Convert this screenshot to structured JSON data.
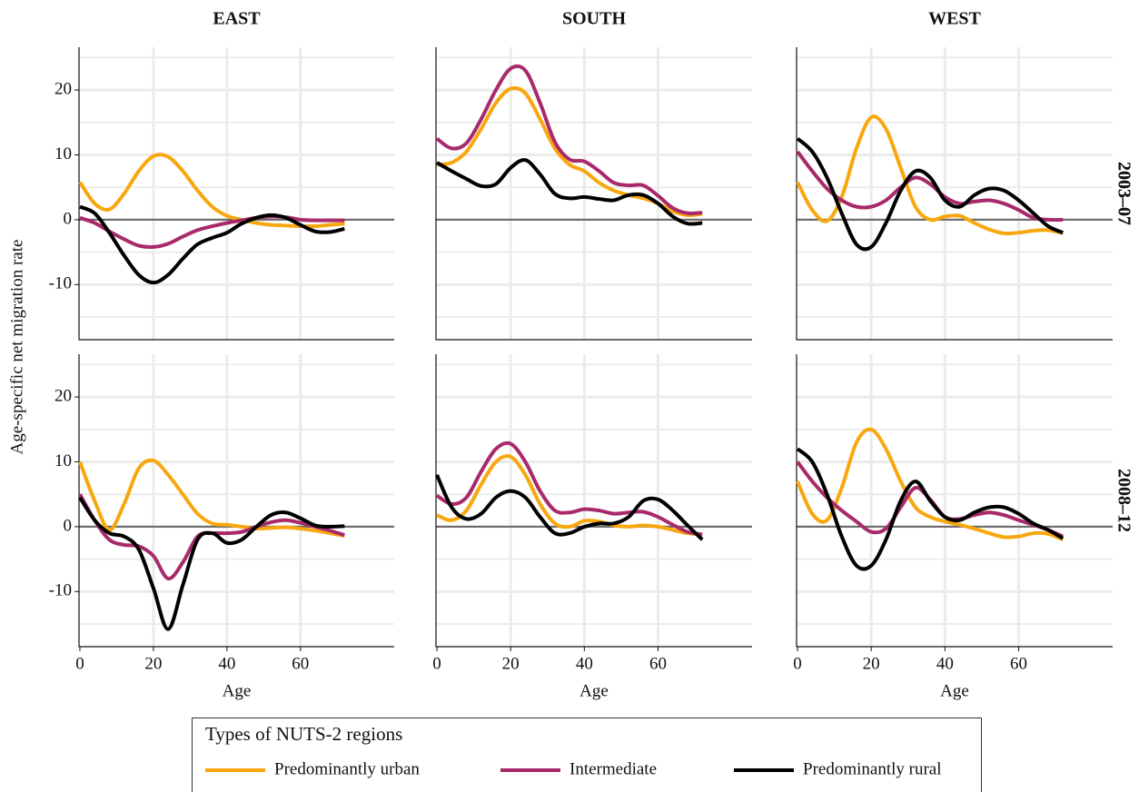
{
  "figure": {
    "y_label": "Age-specific net migration rate",
    "legend_title": "Types of NUTS-2 regions"
  },
  "chart_data": [
    {
      "type": "line",
      "title": "EAST",
      "row_label": "2003–07",
      "x": [
        0,
        4,
        8,
        12,
        16,
        20,
        24,
        28,
        32,
        36,
        40,
        44,
        48,
        52,
        56,
        60,
        64,
        68,
        72
      ],
      "xlim": [
        0,
        85.5
      ],
      "ylim": [
        -18.5,
        26.6
      ],
      "xticks": [
        0,
        20,
        40,
        60
      ],
      "yticks": [
        -10,
        0,
        10,
        20
      ],
      "minor_yticks": [
        -15,
        -5,
        5,
        15,
        25
      ],
      "reference_line": 0,
      "grid": true,
      "series": [
        {
          "name": "Predominantly urban",
          "color": "#f8a70e",
          "values": [
            5.8,
            2.5,
            1.6,
            4,
            7.5,
            9.8,
            9.7,
            7.5,
            4.5,
            2,
            0.6,
            0,
            -0.5,
            -0.8,
            -0.9,
            -1,
            -1,
            -0.8,
            -0.6
          ]
        },
        {
          "name": "Intermediate",
          "color": "#a82a6a",
          "values": [
            0.3,
            -0.5,
            -1.8,
            -3,
            -4,
            -4.2,
            -3.7,
            -2.6,
            -1.6,
            -1,
            -0.5,
            -0.1,
            0.3,
            0.5,
            0.4,
            0,
            -0.1,
            -0.1,
            -0.1
          ]
        },
        {
          "name": "Predominantly rural",
          "color": "#000000",
          "values": [
            2,
            1,
            -2,
            -5.5,
            -8.5,
            -9.7,
            -8.5,
            -6,
            -3.8,
            -2.8,
            -2,
            -0.6,
            0.3,
            0.7,
            0.3,
            -0.8,
            -1.8,
            -1.9,
            -1.4
          ]
        }
      ]
    },
    {
      "type": "line",
      "title": "SOUTH",
      "x": [
        0,
        4,
        8,
        12,
        16,
        20,
        24,
        28,
        32,
        36,
        40,
        44,
        48,
        52,
        56,
        60,
        64,
        68,
        72
      ],
      "xlim": [
        0,
        85.5
      ],
      "ylim": [
        -18.5,
        26.6
      ],
      "xticks": [
        0,
        20,
        40,
        60
      ],
      "yticks": [
        -10,
        0,
        10,
        20
      ],
      "minor_yticks": [
        -15,
        -5,
        5,
        15,
        25
      ],
      "reference_line": 0,
      "grid": true,
      "series": [
        {
          "name": "Predominantly urban",
          "color": "#f8a70e",
          "values": [
            8.5,
            8.8,
            10.5,
            14,
            18,
            20.2,
            19.5,
            15.5,
            11,
            8.5,
            7.5,
            5.7,
            4.5,
            3.8,
            3.3,
            2.5,
            1.3,
            0.7,
            0.9
          ]
        },
        {
          "name": "Intermediate",
          "color": "#a82a6a",
          "values": [
            12.5,
            11,
            11.8,
            15.5,
            20,
            23.3,
            23,
            18,
            12,
            9.3,
            9,
            7.5,
            5.7,
            5.3,
            5.3,
            3.7,
            1.8,
            1,
            1.1
          ]
        },
        {
          "name": "Predominantly rural",
          "color": "#000000",
          "values": [
            8.8,
            7.5,
            6.3,
            5.2,
            5.5,
            8,
            9.2,
            7,
            4,
            3.3,
            3.5,
            3.2,
            3,
            3.8,
            3.8,
            2.5,
            0.5,
            -0.6,
            -0.5
          ]
        }
      ]
    },
    {
      "type": "line",
      "title": "WEST",
      "row_label": "2003–07",
      "x": [
        0,
        4,
        8,
        12,
        16,
        20,
        24,
        28,
        32,
        36,
        40,
        44,
        48,
        52,
        56,
        60,
        64,
        68,
        72
      ],
      "xlim": [
        0,
        85.5
      ],
      "ylim": [
        -18.5,
        26.6
      ],
      "xticks": [
        0,
        20,
        40,
        60
      ],
      "yticks": [
        -10,
        0,
        10,
        20
      ],
      "minor_yticks": [
        -15,
        -5,
        5,
        15,
        25
      ],
      "reference_line": 0,
      "grid": true,
      "series": [
        {
          "name": "Predominantly urban",
          "color": "#f8a70e",
          "values": [
            5.8,
            1.5,
            -0.2,
            3.5,
            11,
            15.8,
            14,
            8,
            2,
            0,
            0.5,
            0.6,
            -0.5,
            -1.5,
            -2.1,
            -2,
            -1.7,
            -1.6,
            -2.1
          ]
        },
        {
          "name": "Intermediate",
          "color": "#a82a6a",
          "values": [
            10.5,
            7.5,
            4.8,
            3,
            2,
            2,
            3,
            5,
            6.5,
            5.5,
            3.5,
            2.5,
            2.8,
            3,
            2.5,
            1.5,
            0.3,
            0,
            0
          ]
        },
        {
          "name": "Predominantly rural",
          "color": "#000000",
          "values": [
            12.5,
            10.5,
            6.5,
            1,
            -3.8,
            -4.2,
            -0.5,
            4.5,
            7.5,
            6.5,
            3,
            2,
            3.8,
            4.8,
            4.5,
            3,
            1,
            -1,
            -2
          ]
        }
      ]
    },
    {
      "type": "line",
      "x_label": "Age",
      "x": [
        0,
        4,
        8,
        12,
        16,
        20,
        24,
        28,
        32,
        36,
        40,
        44,
        48,
        52,
        56,
        60,
        64,
        68,
        72
      ],
      "xlim": [
        0,
        85.5
      ],
      "ylim": [
        -18.5,
        26.6
      ],
      "xticks": [
        0,
        20,
        40,
        60
      ],
      "yticks": [
        -10,
        0,
        10,
        20
      ],
      "minor_yticks": [
        -15,
        -5,
        5,
        15,
        25
      ],
      "reference_line": 0,
      "grid": true,
      "series": [
        {
          "name": "Predominantly urban",
          "color": "#f8a70e",
          "values": [
            10,
            4,
            -0.5,
            3.5,
            9,
            10.2,
            8,
            5,
            2,
            0.5,
            0.3,
            0,
            -0.3,
            -0.2,
            -0.1,
            -0.3,
            -0.6,
            -1,
            -1.4
          ]
        },
        {
          "name": "Intermediate",
          "color": "#a82a6a",
          "values": [
            5,
            1,
            -2,
            -2.8,
            -3,
            -4.5,
            -8,
            -5.5,
            -1.5,
            -1,
            -1,
            -0.8,
            0,
            0.7,
            1,
            0.6,
            0,
            -0.6,
            -1.3
          ]
        },
        {
          "name": "Predominantly rural",
          "color": "#000000",
          "values": [
            4.5,
            1,
            -1,
            -1.5,
            -3.5,
            -9.5,
            -15.8,
            -9,
            -2,
            -1,
            -2.5,
            -2,
            0,
            1.8,
            2.2,
            1.3,
            0.2,
            0,
            0.1
          ]
        }
      ]
    },
    {
      "type": "line",
      "x_label": "Age",
      "x": [
        0,
        4,
        8,
        12,
        16,
        20,
        24,
        28,
        32,
        36,
        40,
        44,
        48,
        52,
        56,
        60,
        64,
        68,
        72
      ],
      "xlim": [
        0,
        85.5
      ],
      "ylim": [
        -18.5,
        26.6
      ],
      "xticks": [
        0,
        20,
        40,
        60
      ],
      "yticks": [
        -10,
        0,
        10,
        20
      ],
      "minor_yticks": [
        -15,
        -5,
        5,
        15,
        25
      ],
      "reference_line": 0,
      "grid": true,
      "series": [
        {
          "name": "Predominantly urban",
          "color": "#f8a70e",
          "values": [
            1.8,
            1,
            2.5,
            6.5,
            10,
            10.8,
            8,
            3.5,
            0.5,
            0,
            0.9,
            0.8,
            0.2,
            0,
            0.2,
            0,
            -0.5,
            -1,
            -1.2
          ]
        },
        {
          "name": "Intermediate",
          "color": "#a82a6a",
          "values": [
            4.8,
            3.5,
            4.5,
            8.5,
            12,
            12.8,
            10,
            5.5,
            2.5,
            2.2,
            2.7,
            2.5,
            2,
            2.2,
            2.3,
            1.5,
            0.3,
            -0.8,
            -1.2
          ]
        },
        {
          "name": "Predominantly rural",
          "color": "#000000",
          "values": [
            8,
            3,
            1.2,
            2,
            4.5,
            5.5,
            4.5,
            1.5,
            -1,
            -1,
            0,
            0.5,
            0.5,
            1.5,
            4,
            4.2,
            2.5,
            0.2,
            -2
          ]
        }
      ]
    },
    {
      "type": "line",
      "x_label": "Age",
      "row_label": "2008–12",
      "x": [
        0,
        4,
        8,
        12,
        16,
        20,
        24,
        28,
        32,
        36,
        40,
        44,
        48,
        52,
        56,
        60,
        64,
        68,
        72
      ],
      "xlim": [
        0,
        85.5
      ],
      "ylim": [
        -18.5,
        26.6
      ],
      "xticks": [
        0,
        20,
        40,
        60
      ],
      "yticks": [
        -10,
        0,
        10,
        20
      ],
      "minor_yticks": [
        -15,
        -5,
        5,
        15,
        25
      ],
      "reference_line": 0,
      "grid": true,
      "series": [
        {
          "name": "Predominantly urban",
          "color": "#f8a70e",
          "values": [
            7,
            2,
            1,
            6,
            13,
            15,
            12,
            7,
            3,
            1.5,
            0.8,
            0.3,
            -0.3,
            -1,
            -1.6,
            -1.5,
            -1,
            -1.1,
            -2
          ]
        },
        {
          "name": "Intermediate",
          "color": "#a82a6a",
          "values": [
            10,
            7,
            4.5,
            2.5,
            0.8,
            -0.8,
            -0.3,
            3,
            6,
            4.2,
            1.5,
            1.2,
            1.8,
            2.2,
            1.8,
            1,
            0.3,
            -0.5,
            -1.5
          ]
        },
        {
          "name": "Predominantly rural",
          "color": "#000000",
          "values": [
            12,
            10,
            5,
            -1.5,
            -6,
            -6,
            -2,
            4,
            7,
            4,
            1.5,
            1,
            2.2,
            3,
            3,
            2,
            0.5,
            -0.5,
            -1.8
          ]
        }
      ]
    }
  ]
}
